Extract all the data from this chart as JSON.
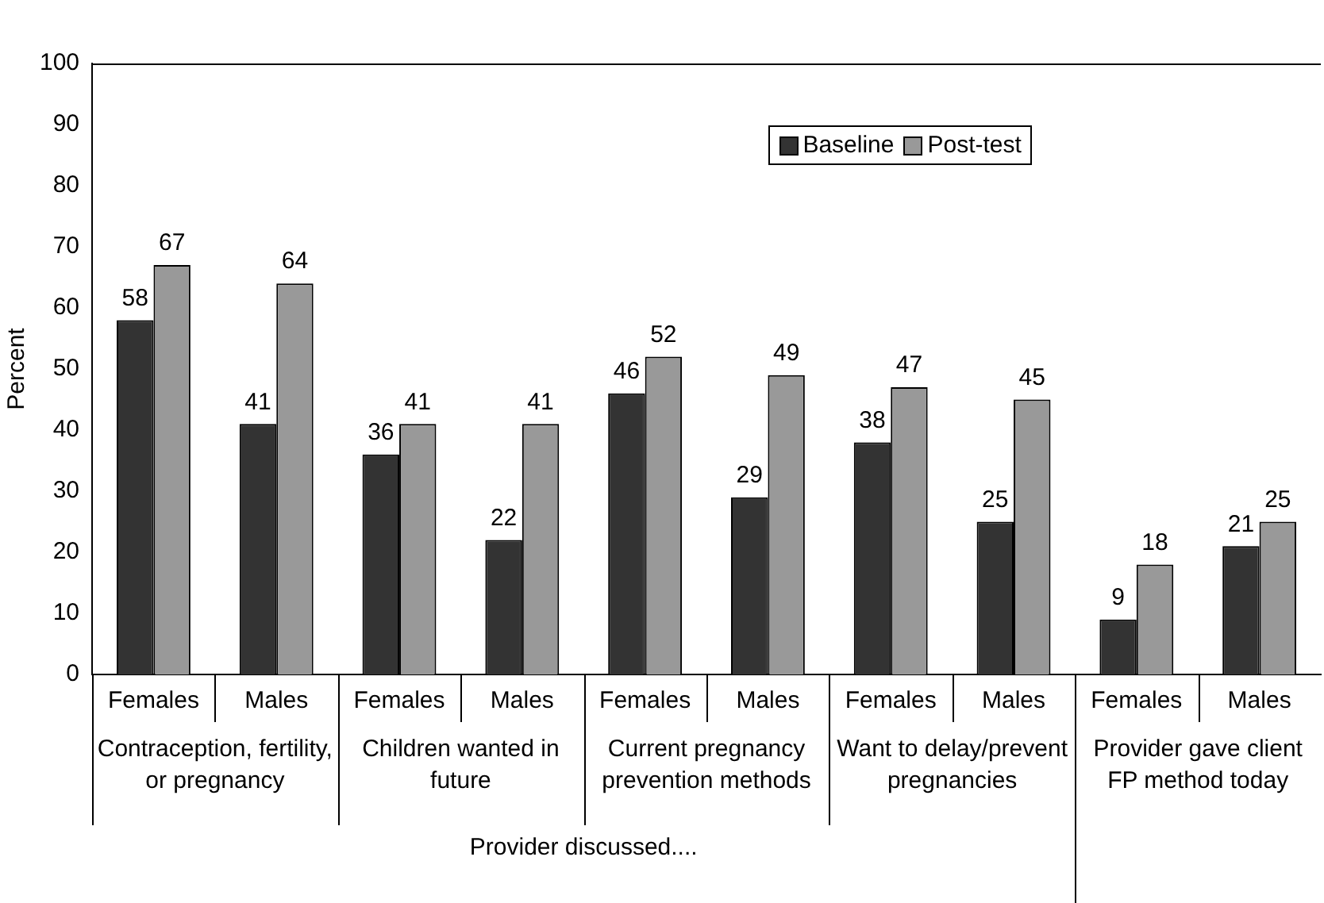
{
  "chart_data": {
    "type": "bar",
    "ylabel": "Percent",
    "categories": [
      "Females",
      "Males",
      "Females",
      "Males",
      "Females",
      "Males",
      "Females",
      "Males",
      "Females",
      "Males"
    ],
    "series": [
      {
        "name": "Baseline",
        "color": "#333333",
        "values": [
          58,
          41,
          36,
          22,
          46,
          29,
          38,
          25,
          9,
          21
        ]
      },
      {
        "name": "Post-test",
        "color": "#999999",
        "values": [
          67,
          64,
          41,
          41,
          52,
          49,
          47,
          45,
          18,
          25
        ]
      }
    ],
    "ylim": [
      0,
      100
    ],
    "yticks": [
      0,
      10,
      20,
      30,
      40,
      50,
      60,
      70,
      80,
      90,
      100
    ],
    "grid": false,
    "legend": "top",
    "data_labels": true,
    "annotations": [
      "Contraception, fertility, or pregnancy",
      "Children wanted in future",
      "Current pregnancy prevention methods",
      "Want to delay/prevent pregnancies",
      "Provider gave client FP method today",
      "Provider discussed...."
    ]
  }
}
